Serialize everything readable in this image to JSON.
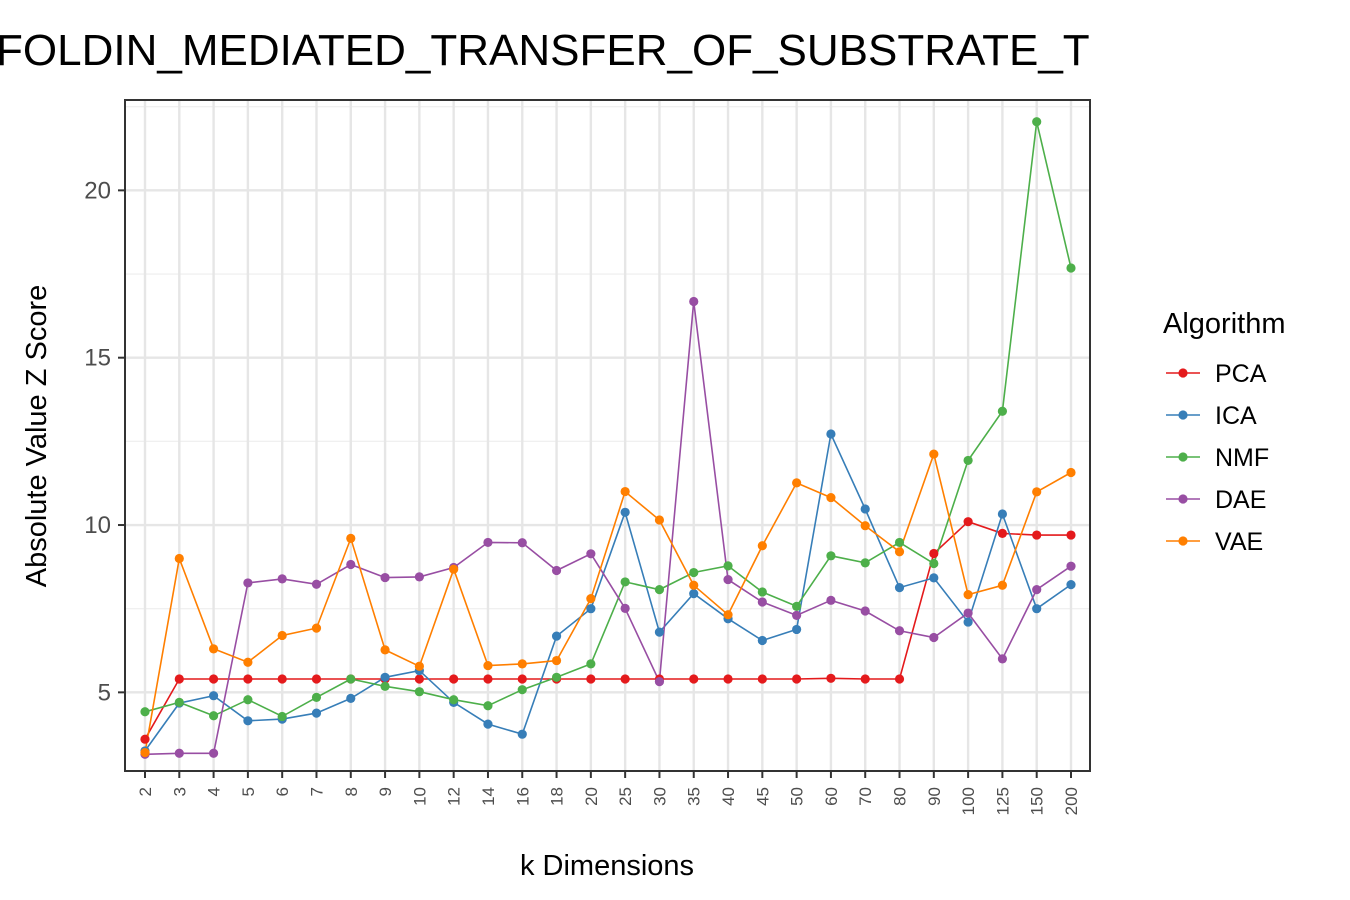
{
  "chart_data": {
    "type": "line",
    "title": "FOLDIN_MEDIATED_TRANSFER_OF_SUBSTRATE_T",
    "xlabel": "k Dimensions",
    "ylabel": "Absolute Value Z Score",
    "categories": [
      "2",
      "3",
      "4",
      "5",
      "6",
      "7",
      "8",
      "9",
      "10",
      "12",
      "14",
      "16",
      "18",
      "20",
      "25",
      "30",
      "35",
      "40",
      "45",
      "50",
      "60",
      "70",
      "80",
      "90",
      "100",
      "125",
      "150",
      "200"
    ],
    "ylim": [
      2.65,
      22.7
    ],
    "yticks": [
      5,
      10,
      15,
      20
    ],
    "ytick_labels": [
      "5",
      "10",
      "15",
      "20"
    ],
    "grid": true,
    "legend_title": "Algorithm",
    "legend_position": "right",
    "series": [
      {
        "name": "PCA",
        "color": "#e41a1c",
        "values": [
          3.6,
          5.4,
          5.4,
          5.4,
          5.4,
          5.4,
          5.4,
          5.4,
          5.4,
          5.4,
          5.4,
          5.4,
          5.4,
          5.4,
          5.4,
          5.4,
          5.4,
          5.4,
          5.4,
          5.4,
          5.42,
          5.4,
          5.4,
          9.15,
          10.1,
          9.75,
          9.7,
          9.7
        ]
      },
      {
        "name": "ICA",
        "color": "#377eb8",
        "values": [
          3.25,
          4.68,
          4.9,
          4.15,
          4.2,
          4.38,
          4.82,
          5.45,
          5.65,
          4.7,
          4.05,
          3.75,
          6.68,
          7.5,
          10.38,
          6.8,
          7.95,
          7.2,
          6.55,
          6.88,
          12.72,
          10.48,
          8.13,
          8.42,
          7.1,
          10.33,
          7.5,
          8.22
        ]
      },
      {
        "name": "NMF",
        "color": "#4daf4a",
        "values": [
          4.42,
          4.7,
          4.3,
          4.78,
          4.28,
          4.85,
          5.4,
          5.18,
          5.02,
          4.78,
          4.6,
          5.08,
          5.45,
          5.85,
          8.3,
          8.07,
          8.58,
          8.78,
          8.0,
          7.57,
          9.08,
          8.87,
          9.48,
          8.85,
          11.93,
          13.4,
          22.05,
          17.68
        ]
      },
      {
        "name": "DAE",
        "color": "#984ea3",
        "values": [
          3.15,
          3.18,
          3.18,
          8.27,
          8.39,
          8.23,
          8.82,
          8.43,
          8.45,
          8.73,
          9.48,
          9.47,
          8.64,
          9.14,
          7.51,
          5.32,
          16.68,
          8.37,
          7.7,
          7.3,
          7.75,
          7.43,
          6.84,
          6.64,
          7.37,
          6.0,
          8.07,
          8.77
        ]
      },
      {
        "name": "VAE",
        "color": "#ff7f00",
        "values": [
          3.2,
          9.0,
          6.3,
          5.9,
          6.7,
          6.92,
          9.6,
          6.27,
          5.78,
          8.68,
          5.8,
          5.85,
          5.95,
          7.8,
          11.0,
          10.15,
          8.2,
          7.32,
          9.38,
          11.26,
          10.82,
          9.98,
          9.2,
          12.12,
          7.92,
          8.2,
          10.99,
          11.57
        ]
      }
    ]
  }
}
